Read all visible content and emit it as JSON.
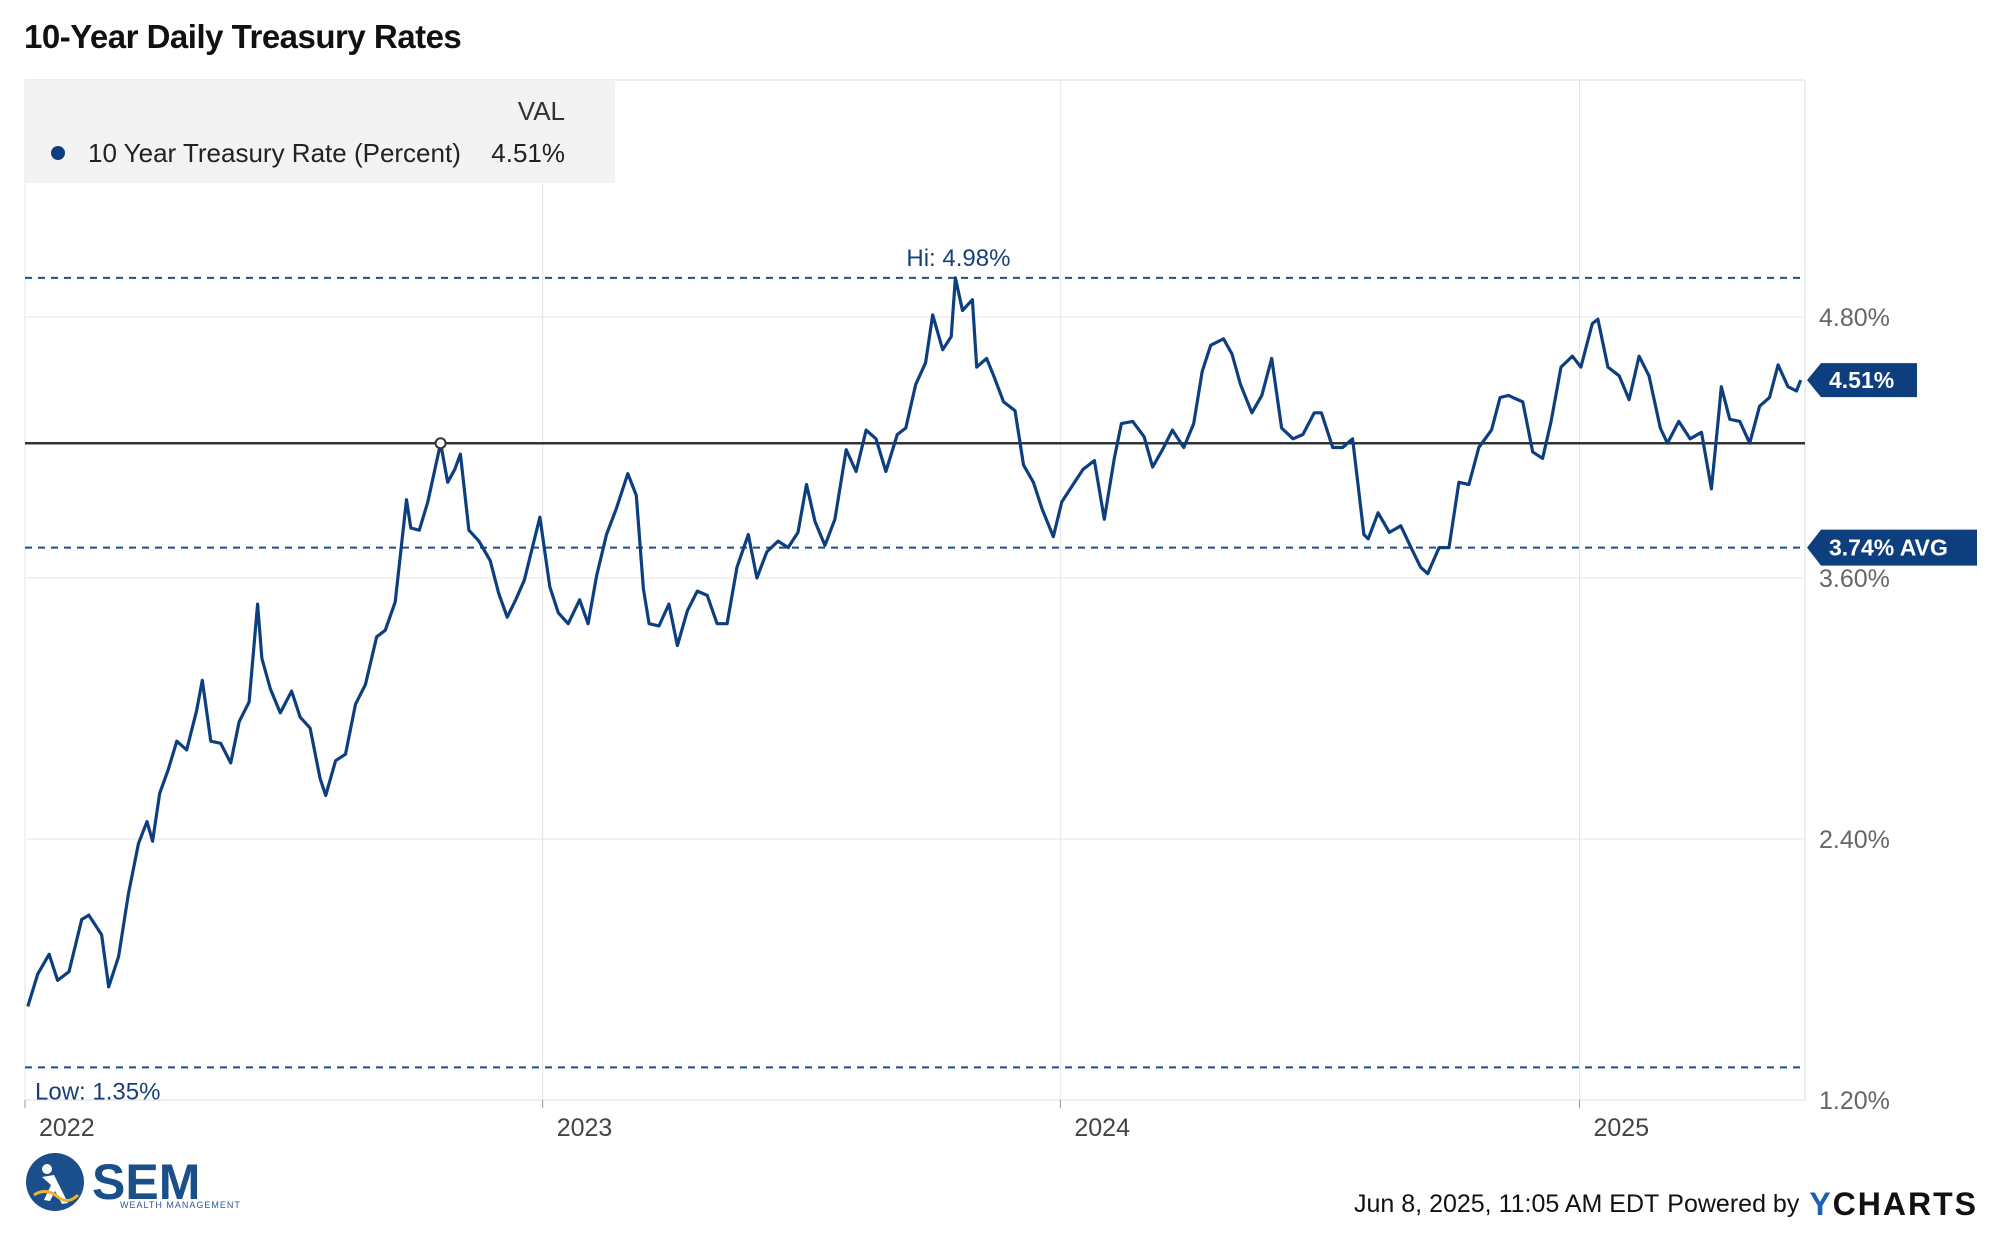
{
  "title": "10-Year Daily Treasury Rates",
  "chart_data": {
    "type": "line",
    "title": "10-Year Daily Treasury Rates",
    "series": [
      {
        "name": "10 Year Treasury Rate (Percent)",
        "color": "#0d3f7f",
        "last_value_label": "4.51%",
        "points": [
          [
            "2022-01-03",
            1.63
          ],
          [
            "2022-01-10",
            1.78
          ],
          [
            "2022-01-18",
            1.87
          ],
          [
            "2022-01-24",
            1.75
          ],
          [
            "2022-02-01",
            1.79
          ],
          [
            "2022-02-10",
            2.03
          ],
          [
            "2022-02-15",
            2.05
          ],
          [
            "2022-02-24",
            1.96
          ],
          [
            "2022-03-01",
            1.72
          ],
          [
            "2022-03-08",
            1.86
          ],
          [
            "2022-03-15",
            2.15
          ],
          [
            "2022-03-22",
            2.38
          ],
          [
            "2022-03-28",
            2.48
          ],
          [
            "2022-04-01",
            2.39
          ],
          [
            "2022-04-06",
            2.61
          ],
          [
            "2022-04-12",
            2.72
          ],
          [
            "2022-04-18",
            2.85
          ],
          [
            "2022-04-25",
            2.81
          ],
          [
            "2022-05-02",
            2.99
          ],
          [
            "2022-05-06",
            3.13
          ],
          [
            "2022-05-12",
            2.85
          ],
          [
            "2022-05-19",
            2.84
          ],
          [
            "2022-05-26",
            2.75
          ],
          [
            "2022-06-01",
            2.94
          ],
          [
            "2022-06-08",
            3.03
          ],
          [
            "2022-06-14",
            3.48
          ],
          [
            "2022-06-17",
            3.23
          ],
          [
            "2022-06-23",
            3.09
          ],
          [
            "2022-06-30",
            2.98
          ],
          [
            "2022-07-08",
            3.08
          ],
          [
            "2022-07-14",
            2.96
          ],
          [
            "2022-07-21",
            2.91
          ],
          [
            "2022-07-28",
            2.68
          ],
          [
            "2022-08-01",
            2.6
          ],
          [
            "2022-08-08",
            2.76
          ],
          [
            "2022-08-15",
            2.79
          ],
          [
            "2022-08-22",
            3.02
          ],
          [
            "2022-08-29",
            3.11
          ],
          [
            "2022-09-06",
            3.33
          ],
          [
            "2022-09-12",
            3.36
          ],
          [
            "2022-09-19",
            3.49
          ],
          [
            "2022-09-27",
            3.96
          ],
          [
            "2022-09-30",
            3.83
          ],
          [
            "2022-10-06",
            3.82
          ],
          [
            "2022-10-12",
            3.95
          ],
          [
            "2022-10-21",
            4.22
          ],
          [
            "2022-10-26",
            4.04
          ],
          [
            "2022-10-31",
            4.1
          ],
          [
            "2022-11-04",
            4.17
          ],
          [
            "2022-11-10",
            3.82
          ],
          [
            "2022-11-17",
            3.77
          ],
          [
            "2022-11-25",
            3.68
          ],
          [
            "2022-12-01",
            3.53
          ],
          [
            "2022-12-07",
            3.42
          ],
          [
            "2022-12-13",
            3.5
          ],
          [
            "2022-12-19",
            3.59
          ],
          [
            "2022-12-30",
            3.88
          ],
          [
            "2023-01-06",
            3.56
          ],
          [
            "2023-01-12",
            3.44
          ],
          [
            "2023-01-19",
            3.39
          ],
          [
            "2023-01-27",
            3.5
          ],
          [
            "2023-02-02",
            3.39
          ],
          [
            "2023-02-08",
            3.61
          ],
          [
            "2023-02-15",
            3.8
          ],
          [
            "2023-02-22",
            3.92
          ],
          [
            "2023-03-02",
            4.08
          ],
          [
            "2023-03-08",
            3.98
          ],
          [
            "2023-03-13",
            3.55
          ],
          [
            "2023-03-17",
            3.39
          ],
          [
            "2023-03-24",
            3.38
          ],
          [
            "2023-03-31",
            3.48
          ],
          [
            "2023-04-06",
            3.29
          ],
          [
            "2023-04-13",
            3.45
          ],
          [
            "2023-04-20",
            3.54
          ],
          [
            "2023-04-27",
            3.52
          ],
          [
            "2023-05-04",
            3.39
          ],
          [
            "2023-05-11",
            3.39
          ],
          [
            "2023-05-18",
            3.65
          ],
          [
            "2023-05-26",
            3.8
          ],
          [
            "2023-06-01",
            3.6
          ],
          [
            "2023-06-08",
            3.72
          ],
          [
            "2023-06-16",
            3.77
          ],
          [
            "2023-06-23",
            3.74
          ],
          [
            "2023-06-30",
            3.81
          ],
          [
            "2023-07-06",
            4.03
          ],
          [
            "2023-07-12",
            3.86
          ],
          [
            "2023-07-19",
            3.75
          ],
          [
            "2023-07-26",
            3.87
          ],
          [
            "2023-08-03",
            4.19
          ],
          [
            "2023-08-10",
            4.09
          ],
          [
            "2023-08-17",
            4.28
          ],
          [
            "2023-08-24",
            4.24
          ],
          [
            "2023-08-31",
            4.09
          ],
          [
            "2023-09-08",
            4.26
          ],
          [
            "2023-09-14",
            4.29
          ],
          [
            "2023-09-21",
            4.49
          ],
          [
            "2023-09-28",
            4.59
          ],
          [
            "2023-10-03",
            4.81
          ],
          [
            "2023-10-10",
            4.65
          ],
          [
            "2023-10-16",
            4.71
          ],
          [
            "2023-10-19",
            4.98
          ],
          [
            "2023-10-24",
            4.83
          ],
          [
            "2023-10-31",
            4.88
          ],
          [
            "2023-11-03",
            4.57
          ],
          [
            "2023-11-10",
            4.61
          ],
          [
            "2023-11-15",
            4.53
          ],
          [
            "2023-11-22",
            4.41
          ],
          [
            "2023-11-30",
            4.37
          ],
          [
            "2023-12-06",
            4.12
          ],
          [
            "2023-12-13",
            4.04
          ],
          [
            "2023-12-19",
            3.92
          ],
          [
            "2023-12-27",
            3.79
          ],
          [
            "2024-01-02",
            3.95
          ],
          [
            "2024-01-10",
            4.03
          ],
          [
            "2024-01-17",
            4.1
          ],
          [
            "2024-01-25",
            4.14
          ],
          [
            "2024-02-01",
            3.87
          ],
          [
            "2024-02-08",
            4.15
          ],
          [
            "2024-02-13",
            4.31
          ],
          [
            "2024-02-21",
            4.32
          ],
          [
            "2024-02-29",
            4.25
          ],
          [
            "2024-03-06",
            4.11
          ],
          [
            "2024-03-13",
            4.19
          ],
          [
            "2024-03-20",
            4.28
          ],
          [
            "2024-03-28",
            4.2
          ],
          [
            "2024-04-04",
            4.31
          ],
          [
            "2024-04-10",
            4.55
          ],
          [
            "2024-04-16",
            4.67
          ],
          [
            "2024-04-25",
            4.7
          ],
          [
            "2024-05-01",
            4.63
          ],
          [
            "2024-05-07",
            4.49
          ],
          [
            "2024-05-15",
            4.36
          ],
          [
            "2024-05-22",
            4.44
          ],
          [
            "2024-05-29",
            4.61
          ],
          [
            "2024-06-05",
            4.29
          ],
          [
            "2024-06-13",
            4.24
          ],
          [
            "2024-06-20",
            4.26
          ],
          [
            "2024-06-28",
            4.36
          ],
          [
            "2024-07-03",
            4.36
          ],
          [
            "2024-07-11",
            4.2
          ],
          [
            "2024-07-18",
            4.2
          ],
          [
            "2024-07-25",
            4.24
          ],
          [
            "2024-08-02",
            3.8
          ],
          [
            "2024-08-05",
            3.78
          ],
          [
            "2024-08-12",
            3.9
          ],
          [
            "2024-08-20",
            3.81
          ],
          [
            "2024-08-28",
            3.84
          ],
          [
            "2024-09-05",
            3.73
          ],
          [
            "2024-09-11",
            3.65
          ],
          [
            "2024-09-16",
            3.62
          ],
          [
            "2024-09-24",
            3.74
          ],
          [
            "2024-10-01",
            3.74
          ],
          [
            "2024-10-08",
            4.04
          ],
          [
            "2024-10-15",
            4.03
          ],
          [
            "2024-10-22",
            4.2
          ],
          [
            "2024-10-31",
            4.28
          ],
          [
            "2024-11-06",
            4.43
          ],
          [
            "2024-11-12",
            4.44
          ],
          [
            "2024-11-15",
            4.43
          ],
          [
            "2024-11-22",
            4.41
          ],
          [
            "2024-11-29",
            4.18
          ],
          [
            "2024-12-06",
            4.15
          ],
          [
            "2024-12-12",
            4.32
          ],
          [
            "2024-12-19",
            4.57
          ],
          [
            "2024-12-27",
            4.62
          ],
          [
            "2025-01-02",
            4.57
          ],
          [
            "2025-01-10",
            4.77
          ],
          [
            "2025-01-14",
            4.79
          ],
          [
            "2025-01-21",
            4.57
          ],
          [
            "2025-01-29",
            4.53
          ],
          [
            "2025-02-05",
            4.42
          ],
          [
            "2025-02-12",
            4.62
          ],
          [
            "2025-02-19",
            4.53
          ],
          [
            "2025-02-27",
            4.29
          ],
          [
            "2025-03-04",
            4.22
          ],
          [
            "2025-03-12",
            4.32
          ],
          [
            "2025-03-20",
            4.24
          ],
          [
            "2025-03-28",
            4.27
          ],
          [
            "2025-04-04",
            4.01
          ],
          [
            "2025-04-09",
            4.34
          ],
          [
            "2025-04-11",
            4.48
          ],
          [
            "2025-04-17",
            4.33
          ],
          [
            "2025-04-24",
            4.32
          ],
          [
            "2025-05-01",
            4.22
          ],
          [
            "2025-05-08",
            4.39
          ],
          [
            "2025-05-15",
            4.43
          ],
          [
            "2025-05-21",
            4.58
          ],
          [
            "2025-05-28",
            4.48
          ],
          [
            "2025-06-03",
            4.46
          ],
          [
            "2025-06-06",
            4.51
          ]
        ]
      }
    ],
    "x_range": [
      "2022-01-01",
      "2025-06-09"
    ],
    "x_ticks": [
      {
        "date": "2022-01-01",
        "label": "2022"
      },
      {
        "date": "2023-01-01",
        "label": "2023"
      },
      {
        "date": "2024-01-01",
        "label": "2024"
      },
      {
        "date": "2025-01-01",
        "label": "2025"
      }
    ],
    "y_range": [
      1.2,
      5.89
    ],
    "y_ticks": [
      {
        "value": 1.2,
        "label": "1.20%"
      },
      {
        "value": 2.4,
        "label": "2.40%"
      },
      {
        "value": 3.6,
        "label": "3.60%"
      },
      {
        "value": 4.8,
        "label": "4.80%"
      }
    ],
    "reference_lines": {
      "high": {
        "value": 4.98,
        "label": "Hi: 4.98%"
      },
      "low": {
        "value": 1.35,
        "label": "Low: 1.35%"
      },
      "average": {
        "value": 3.74,
        "label": "3.74% AVG"
      },
      "marker": {
        "date": "2022-10-21",
        "value": 4.22
      }
    },
    "legend": {
      "position": "top-left",
      "header": "VAL",
      "label": "10 Year Treasury Rate (Percent)",
      "value": "4.51%"
    },
    "grid": true
  },
  "brand": {
    "name": "SEM",
    "subtitle": "WEALTH MANAGEMENT"
  },
  "footer": {
    "timestamp": "Jun 8, 2025, 11:05 AM EDT",
    "powered": "Powered by",
    "provider": "CHARTS",
    "provider_mark": "Y"
  }
}
